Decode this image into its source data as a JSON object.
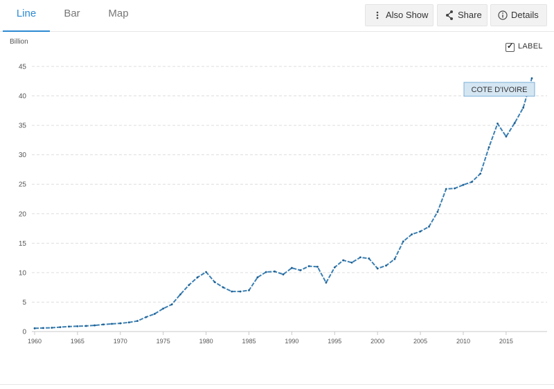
{
  "tabs": [
    {
      "label": "Line",
      "active": true
    },
    {
      "label": "Bar",
      "active": false
    },
    {
      "label": "Map",
      "active": false
    }
  ],
  "toolbar": {
    "also_show": {
      "label": "Also Show",
      "icon": "vertical-dots-icon"
    },
    "share": {
      "label": "Share",
      "icon": "share-icon"
    },
    "details": {
      "label": "Details",
      "icon": "info-icon"
    }
  },
  "label_toggle": {
    "text": "LABEL",
    "checked": true
  },
  "colors": {
    "accent": "#2b8ad1",
    "line": "#3a7fb3",
    "grid": "#dddddd",
    "tooltip_bg": "#d5e6f3",
    "tooltip_border": "#7aaed6"
  },
  "chart_data": {
    "type": "line",
    "unit_label": "Billion",
    "ylim": [
      0,
      45
    ],
    "yticks": [
      0,
      5,
      10,
      15,
      20,
      25,
      30,
      35,
      40,
      45
    ],
    "xlim": [
      1960,
      2018
    ],
    "xticks": [
      1960,
      1965,
      1970,
      1975,
      1980,
      1985,
      1990,
      1995,
      2000,
      2005,
      2010,
      2015
    ],
    "grid": true,
    "series": [
      {
        "name": "COTE D'IVOIRE",
        "x": [
          1960,
          1961,
          1962,
          1963,
          1964,
          1965,
          1966,
          1967,
          1968,
          1969,
          1970,
          1971,
          1972,
          1973,
          1974,
          1975,
          1976,
          1977,
          1978,
          1979,
          1980,
          1981,
          1982,
          1983,
          1984,
          1985,
          1986,
          1987,
          1988,
          1989,
          1990,
          1991,
          1992,
          1993,
          1994,
          1995,
          1996,
          1997,
          1998,
          1999,
          2000,
          2001,
          2002,
          2003,
          2004,
          2005,
          2006,
          2007,
          2008,
          2009,
          2010,
          2011,
          2012,
          2013,
          2014,
          2015,
          2016,
          2017,
          2018
        ],
        "values": [
          0.55,
          0.6,
          0.65,
          0.75,
          0.85,
          0.9,
          0.95,
          1.05,
          1.2,
          1.3,
          1.4,
          1.55,
          1.8,
          2.45,
          3.0,
          3.9,
          4.6,
          6.3,
          7.9,
          9.2,
          10.1,
          8.4,
          7.5,
          6.8,
          6.8,
          7.0,
          9.2,
          10.1,
          10.2,
          9.7,
          10.8,
          10.4,
          11.1,
          11.0,
          8.3,
          10.9,
          12.1,
          11.7,
          12.6,
          12.4,
          10.7,
          11.2,
          12.3,
          15.3,
          16.5,
          17.0,
          17.8,
          20.3,
          24.2,
          24.3,
          24.9,
          25.4,
          26.8,
          31.3,
          35.3,
          33.1,
          35.4,
          38.0,
          43.0
        ]
      }
    ],
    "annotations": [
      {
        "text": "COTE D'IVOIRE",
        "x": 2018,
        "y": 43.0
      }
    ]
  }
}
